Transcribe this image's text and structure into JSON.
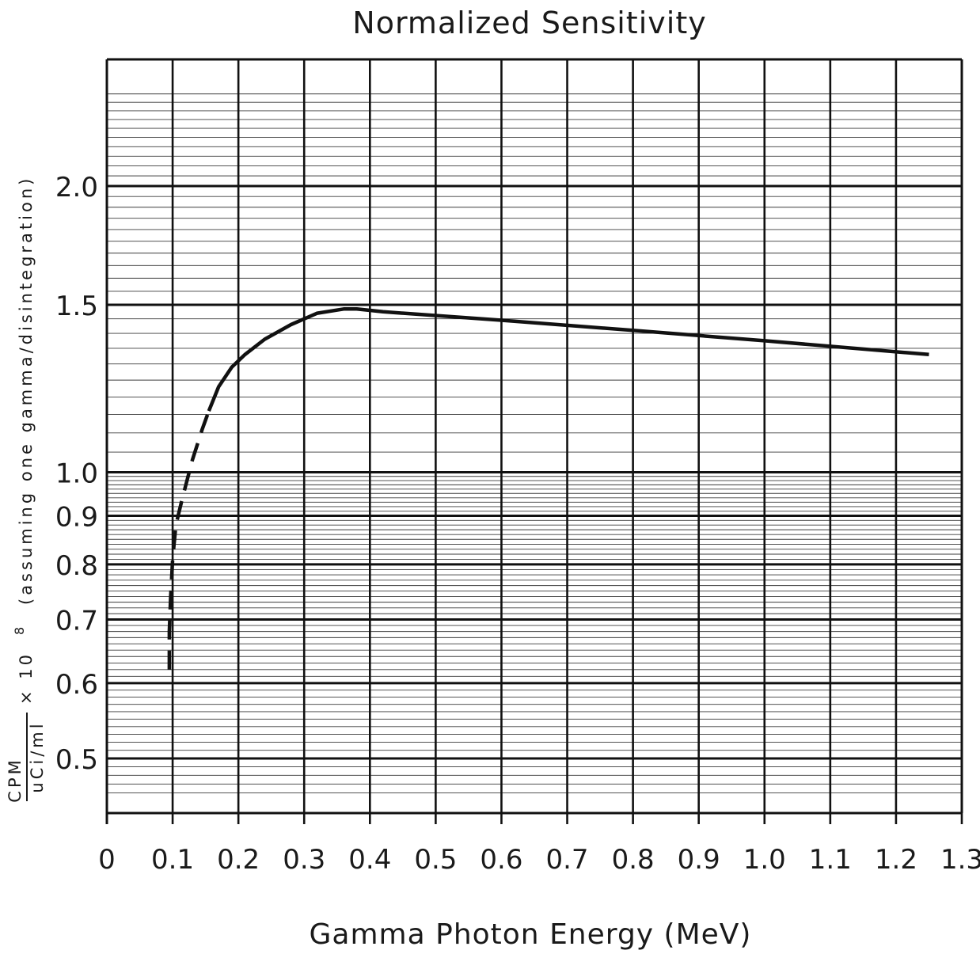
{
  "chart_data": {
    "type": "line",
    "title": "Normalized Sensitivity",
    "xlabel": "Gamma Photon Energy (MeV)",
    "ylabel": {
      "fraction_numerator": "CPM",
      "fraction_denominator": "uCi/ml",
      "multiplier": "× 10",
      "exponent": "8",
      "note": "(assuming one gamma/disintegration)"
    },
    "xlim": [
      0,
      1.3
    ],
    "ylim": [
      0.45,
      2.5
    ],
    "y_scale": "log",
    "grid": true,
    "x_ticks": [
      "0",
      "0.1",
      "0.2",
      "0.3",
      "0.4",
      "0.5",
      "0.6",
      "0.7",
      "0.8",
      "0.9",
      "1.0",
      "1.1",
      "1.2",
      "1.3"
    ],
    "y_ticks": [
      "0.5",
      "0.6",
      "0.7",
      "0.8",
      "0.9",
      "1.0",
      "1.5",
      "2.0"
    ],
    "series": [
      {
        "style": "dashed",
        "x": [
          0.095,
          0.095,
          0.097,
          0.1,
          0.105,
          0.115,
          0.13,
          0.145,
          0.155
        ],
        "y": [
          0.62,
          0.68,
          0.74,
          0.81,
          0.88,
          0.94,
          1.03,
          1.11,
          1.16
        ]
      },
      {
        "style": "solid",
        "x": [
          0.155,
          0.17,
          0.19,
          0.21,
          0.24,
          0.28,
          0.32,
          0.36,
          0.38,
          0.42,
          0.6,
          0.8,
          1.0,
          1.25
        ],
        "y": [
          1.16,
          1.23,
          1.29,
          1.33,
          1.38,
          1.43,
          1.47,
          1.485,
          1.485,
          1.475,
          1.445,
          1.41,
          1.375,
          1.33
        ]
      }
    ]
  }
}
